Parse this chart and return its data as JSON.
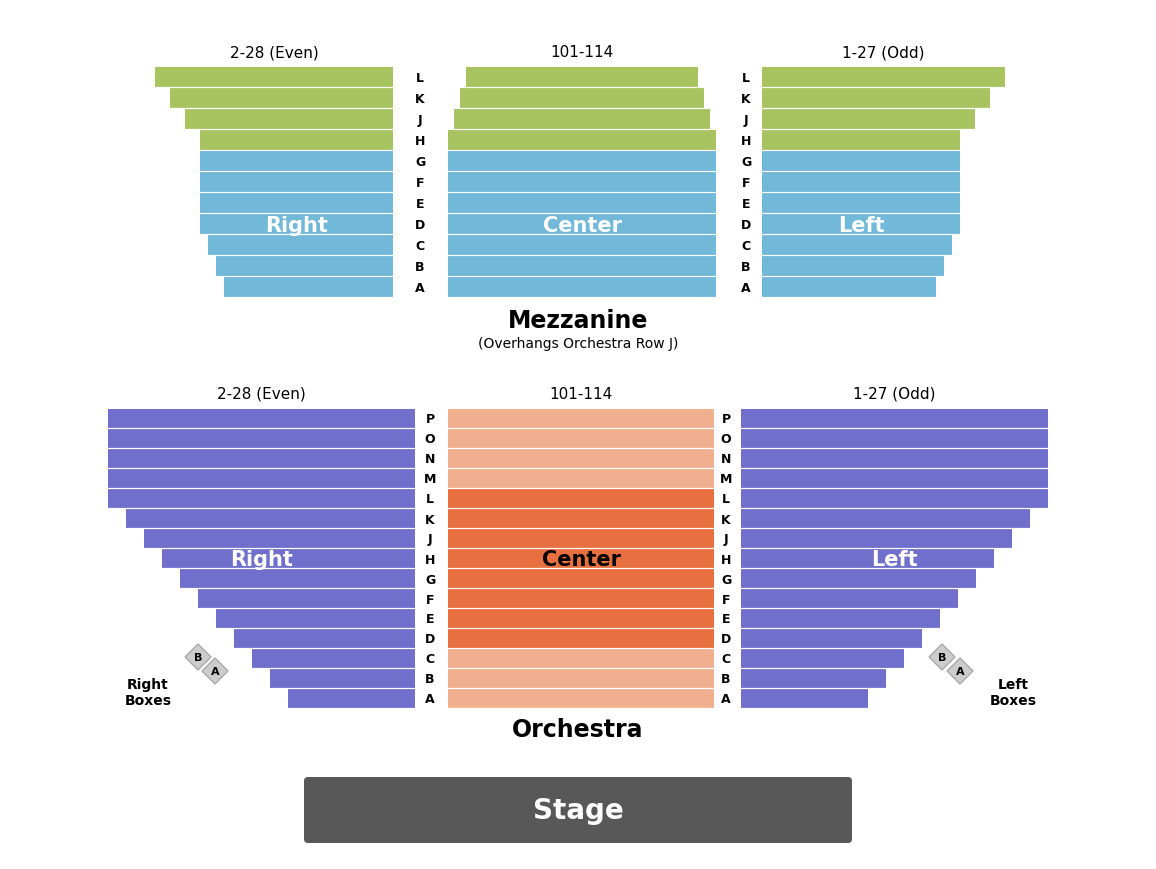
{
  "bg_color": "#ffffff",
  "mezzanine_rows_green": [
    "L",
    "K",
    "J",
    "H"
  ],
  "mezzanine_rows_blue": [
    "G",
    "F",
    "E",
    "D",
    "C",
    "B",
    "A"
  ],
  "mezzanine_all_rows": [
    "L",
    "K",
    "J",
    "H",
    "G",
    "F",
    "E",
    "D",
    "C",
    "B",
    "A"
  ],
  "orchestra_rows": [
    "P",
    "O",
    "N",
    "M",
    "L",
    "K",
    "J",
    "H",
    "G",
    "F",
    "E",
    "D",
    "C",
    "B",
    "A"
  ],
  "mezz_label": "Mezzanine",
  "mezz_sublabel": "(Overhangs Orchestra Row J)",
  "orch_label": "Orchestra",
  "stage_label": "Stage",
  "seat_label_right": "2-28 (Even)",
  "seat_label_center": "101-114",
  "seat_label_left": "1-27 (Odd)",
  "mezz_right_label": "Right",
  "mezz_center_label": "Center",
  "mezz_left_label": "Left",
  "orch_right_label": "Right",
  "orch_center_label": "Center",
  "orch_left_label": "Left",
  "right_boxes_label": "Right\nBoxes",
  "left_boxes_label": "Left\nBoxes",
  "color_green": "#a8c460",
  "color_green_top": "#c8dc80",
  "color_blue": "#72b8d8",
  "color_purple": "#7070cc",
  "color_orange_dark": "#e87040",
  "color_orange_light": "#f0b090",
  "color_stage": "#585858",
  "color_box": "#cccccc"
}
